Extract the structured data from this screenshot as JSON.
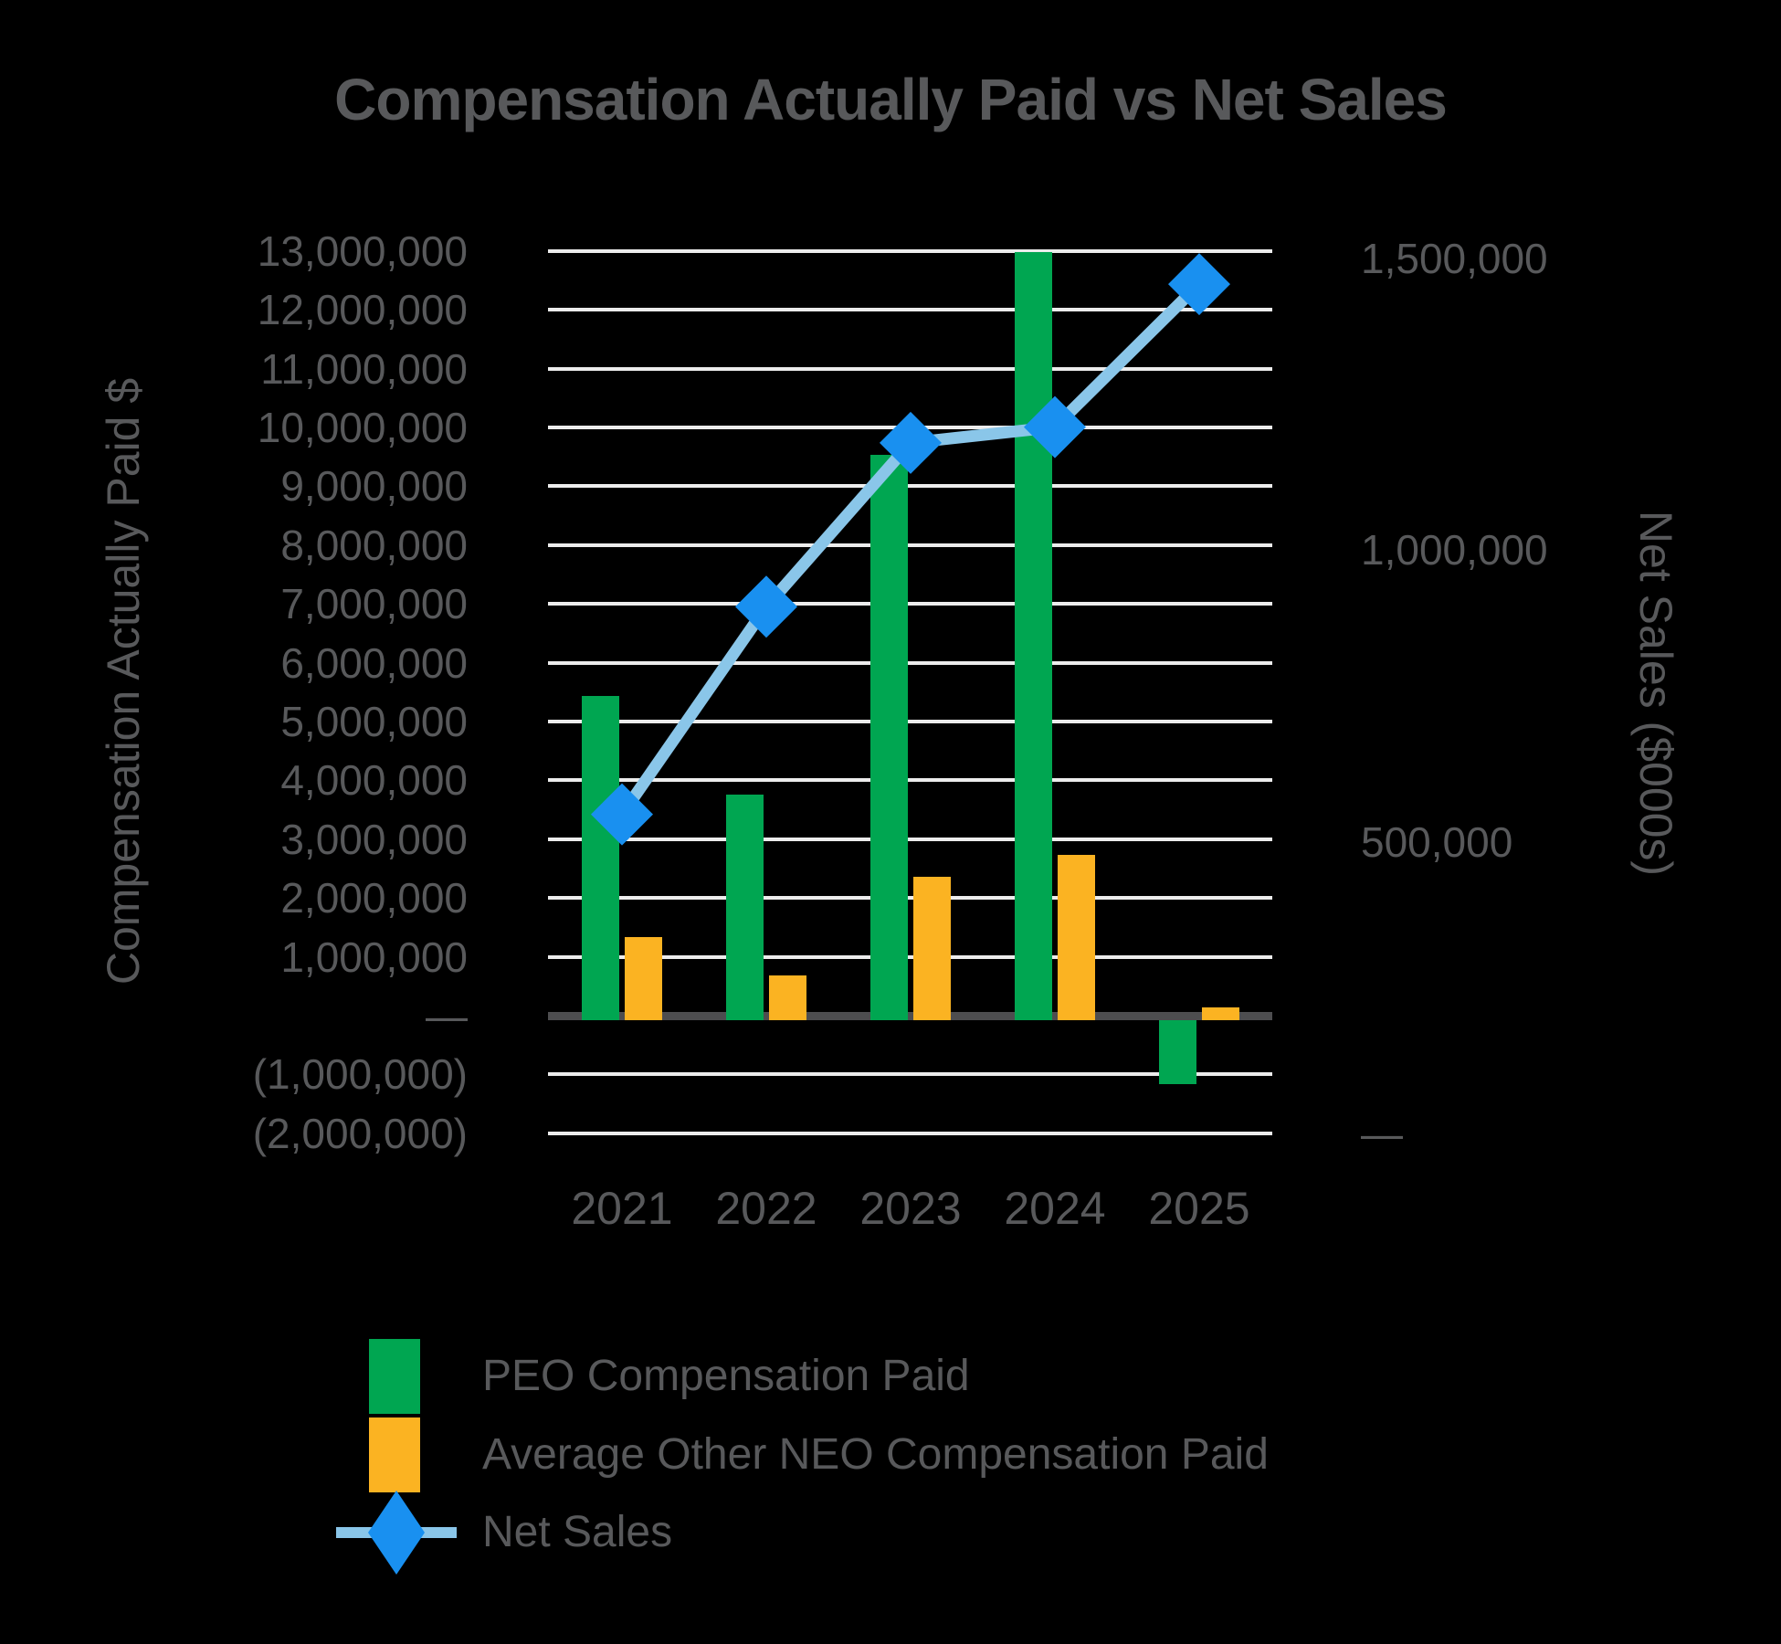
{
  "title": "Compensation Actually Paid vs Net Sales",
  "left_axis": {
    "title": "Compensation Actually Paid $",
    "ticks": [
      {
        "label": "13,000,000",
        "value": 13000000
      },
      {
        "label": "12,000,000",
        "value": 12000000
      },
      {
        "label": "11,000,000",
        "value": 11000000
      },
      {
        "label": "10,000,000",
        "value": 10000000
      },
      {
        "label": "9,000,000",
        "value": 9000000
      },
      {
        "label": "8,000,000",
        "value": 8000000
      },
      {
        "label": "7,000,000",
        "value": 7000000
      },
      {
        "label": "6,000,000",
        "value": 6000000
      },
      {
        "label": "5,000,000",
        "value": 5000000
      },
      {
        "label": "4,000,000",
        "value": 4000000
      },
      {
        "label": "3,000,000",
        "value": 3000000
      },
      {
        "label": "2,000,000",
        "value": 2000000
      },
      {
        "label": "1,000,000",
        "value": 1000000
      },
      {
        "label": "—",
        "value": 0
      },
      {
        "label": "(1,000,000)",
        "value": -1000000
      },
      {
        "label": "(2,000,000)",
        "value": -2000000
      }
    ]
  },
  "right_axis": {
    "title": "Net Sales ($000s)",
    "ticks": [
      {
        "label": "1,500,000",
        "value": 1500000
      },
      {
        "label": "1,000,000",
        "value": 1000000
      },
      {
        "label": "500,000",
        "value": 500000
      },
      {
        "label": "—",
        "value": 0
      }
    ]
  },
  "x_axis": {
    "categories": [
      "2021",
      "2022",
      "2023",
      "2024",
      "2025"
    ]
  },
  "legend": [
    {
      "label": "PEO Compensation Paid",
      "marker": "bar",
      "color": "#00A651"
    },
    {
      "label": "Average Other NEO Compensation Paid",
      "marker": "bar",
      "color": "#FBB322"
    },
    {
      "label": "Net Sales",
      "marker": "line-diamond",
      "color": "#1990F0",
      "line_color": "#8AC6E9"
    }
  ],
  "colors": {
    "background": "#000000",
    "text": "#58595B",
    "gridline": "#ECECEC",
    "zero_axis": "#4D4D4F",
    "peo_bar": "#00A651",
    "neo_bar": "#FBB322",
    "net_sales_marker": "#1990F0",
    "net_sales_line": "#8AC6E9"
  },
  "chart_data": {
    "type": "bar+line combo",
    "title": "Compensation Actually Paid vs Net Sales",
    "categories": [
      "2021",
      "2022",
      "2023",
      "2024",
      "2025"
    ],
    "series": [
      {
        "name": "PEO Compensation Paid",
        "type": "bar",
        "axis": "left",
        "color": "#00A651",
        "values": [
          5430000,
          3760000,
          9530000,
          12980000,
          -1160000
        ]
      },
      {
        "name": "Average Other NEO Compensation Paid",
        "type": "bar",
        "axis": "left",
        "color": "#FBB322",
        "values": [
          1340000,
          680000,
          2360000,
          2730000,
          140000
        ]
      },
      {
        "name": "Net Sales",
        "type": "line",
        "axis": "right",
        "color": "#1990F0",
        "values": [
          547000,
          903000,
          1184000,
          1211000,
          1456000
        ]
      }
    ],
    "left_ylabel": "Compensation Actually Paid $",
    "right_ylabel": "Net Sales ($000s)",
    "left_ylim": [
      -2000000,
      13000000
    ],
    "right_ylim": [
      0,
      1500000
    ],
    "left_tick_step": 1000000,
    "gridlines": "horizontal, every 1,000,000 on left axis; zero line emphasized dark",
    "legend_position": "bottom-left"
  }
}
